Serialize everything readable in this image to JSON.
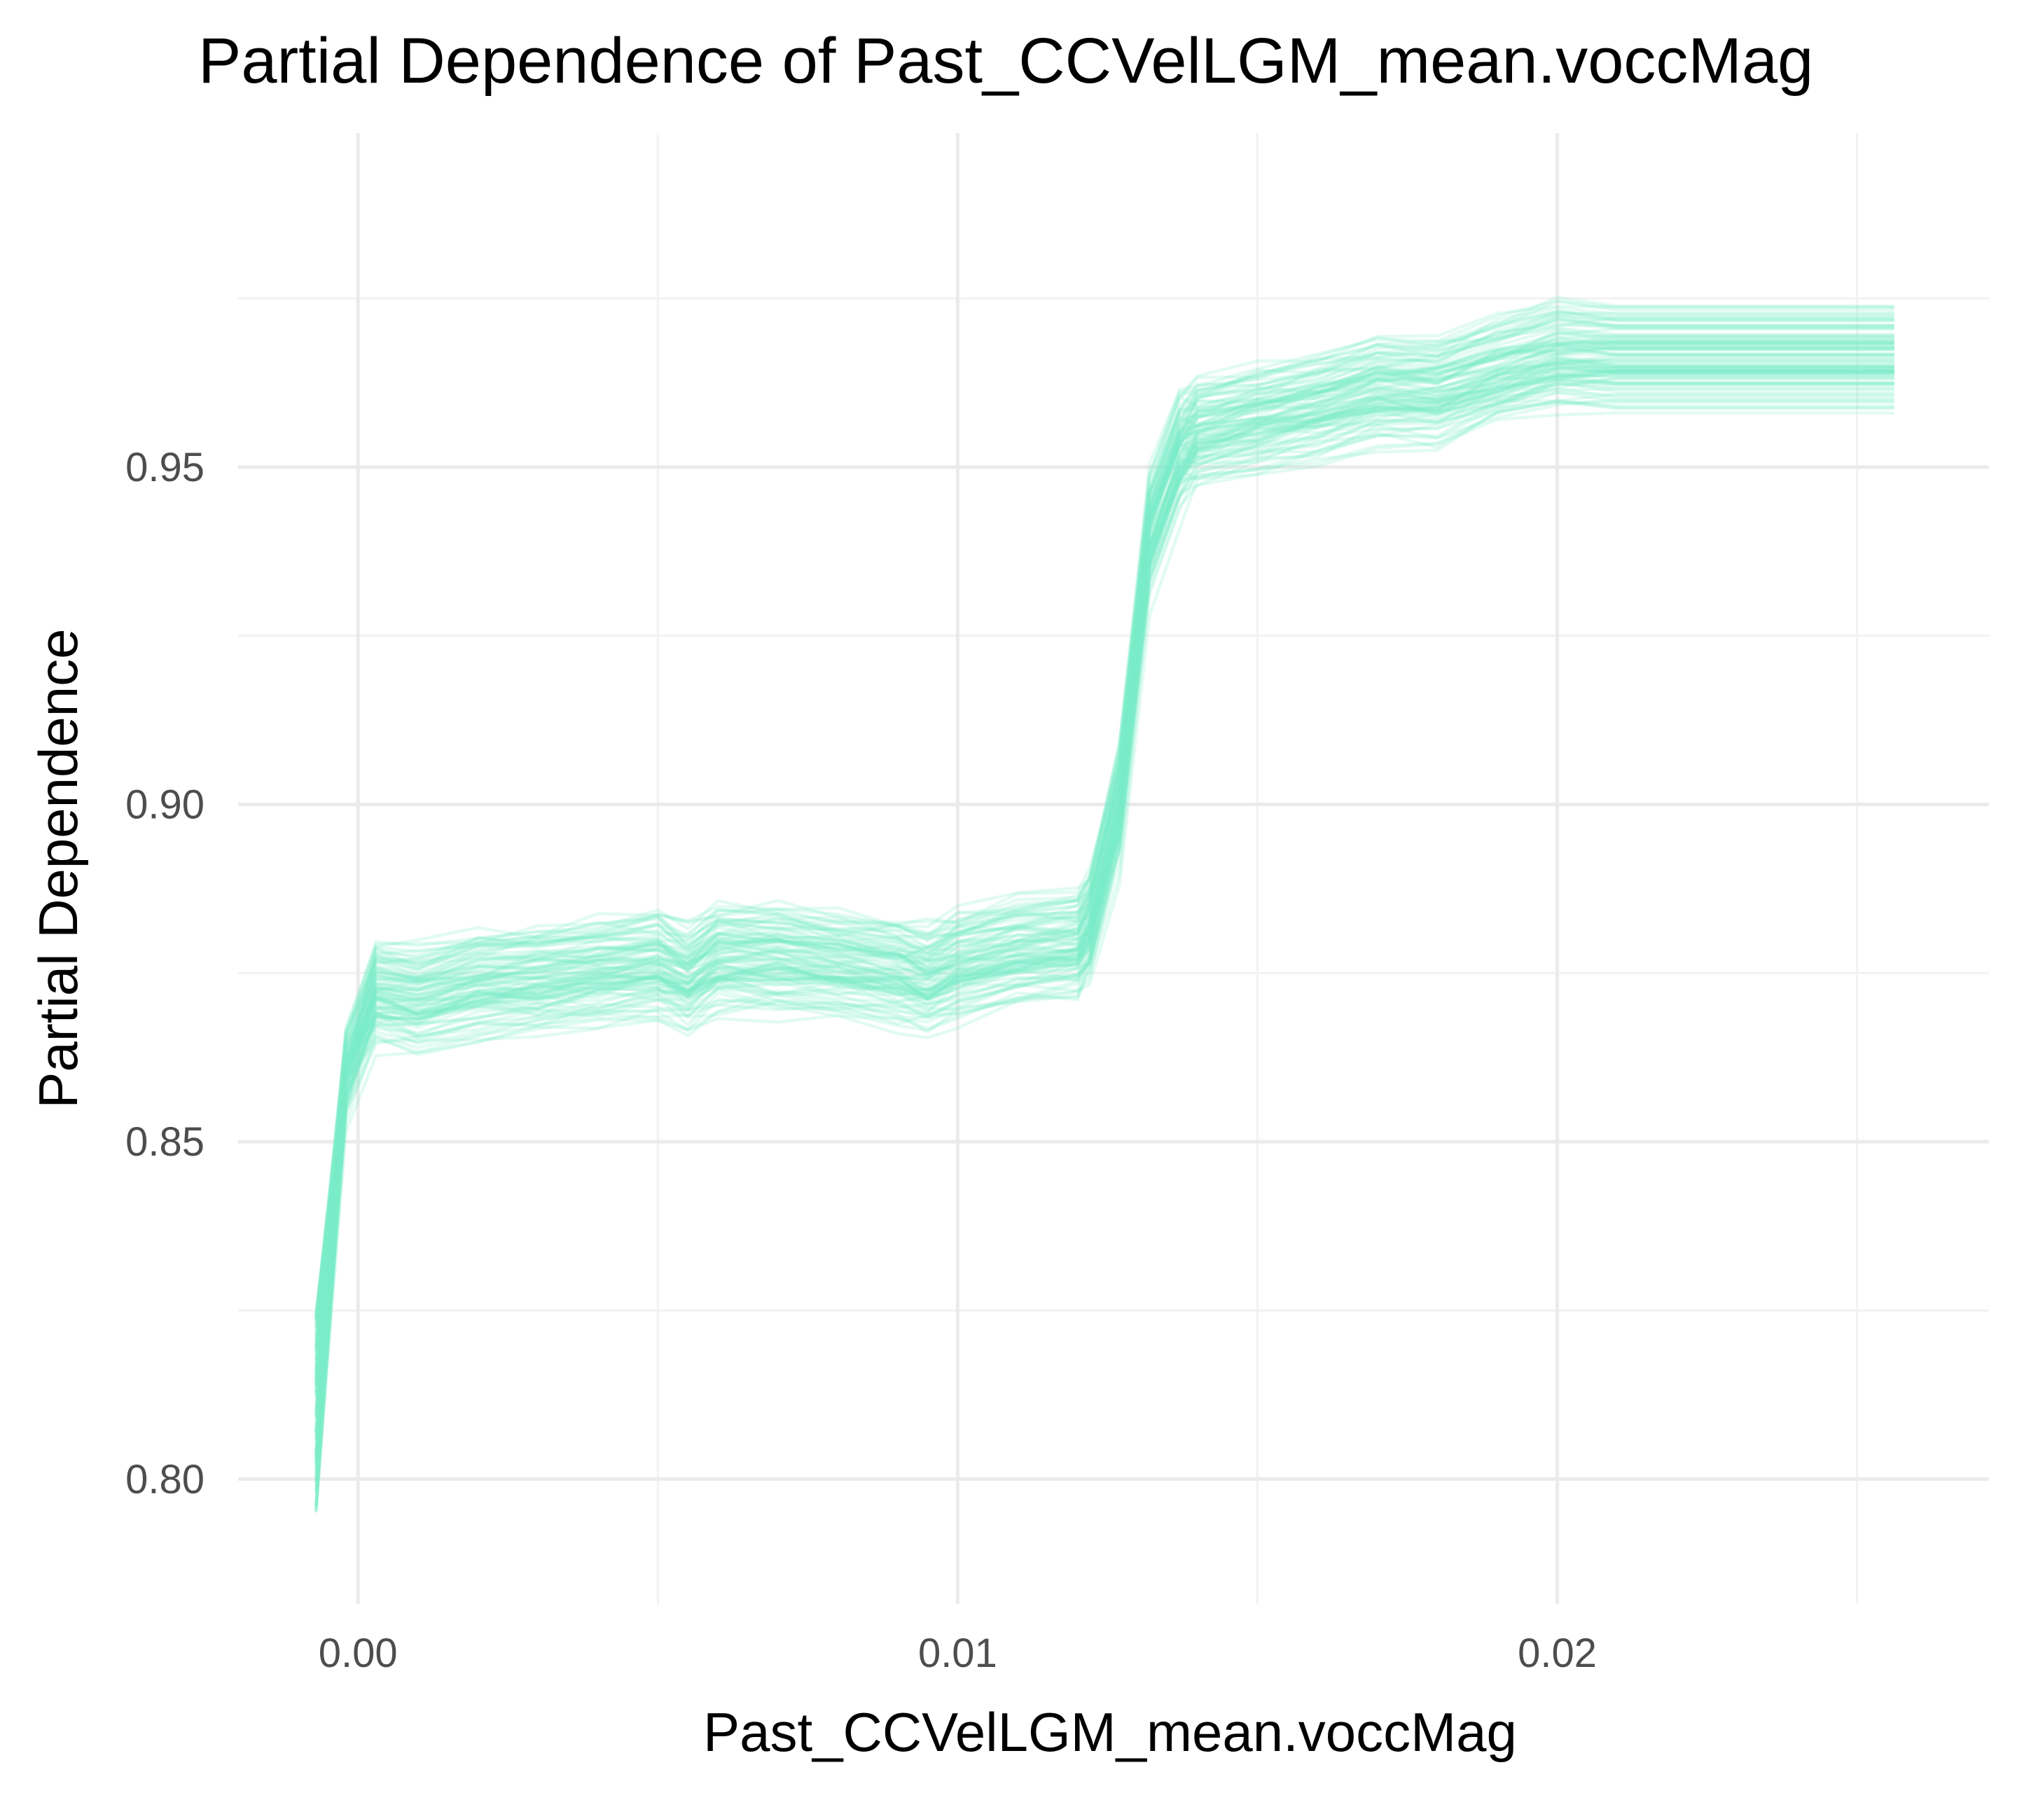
{
  "chart_data": {
    "type": "line",
    "title": "Partial Dependence of Past_CCVelLGM_mean.voccMag",
    "xlabel": "Past_CCVelLGM_mean.voccMag",
    "ylabel": "Partial Dependence",
    "xlim": [
      -0.002,
      0.0272
    ],
    "ylim": [
      0.7815,
      0.9995
    ],
    "x_major_ticks": [
      0.0,
      0.01,
      0.02
    ],
    "x_tick_labels": [
      "0.00",
      "0.01",
      "0.02"
    ],
    "x_minor_ticks": [
      0.005,
      0.015,
      0.025
    ],
    "y_major_ticks": [
      0.8,
      0.85,
      0.9,
      0.95
    ],
    "y_tick_labels": [
      "0.80",
      "0.85",
      "0.90",
      "0.95"
    ],
    "y_minor_ticks": [
      0.825,
      0.875,
      0.925,
      0.975
    ],
    "grid": true,
    "legend": "none",
    "line_color": "#7aeec7",
    "line_opacity": 0.22,
    "n_curves": 100,
    "x": [
      -0.0007,
      -0.0002,
      0.0003,
      0.001,
      0.002,
      0.003,
      0.004,
      0.005,
      0.0055,
      0.006,
      0.007,
      0.008,
      0.009,
      0.0095,
      0.01,
      0.011,
      0.012,
      0.0122,
      0.0127,
      0.0132,
      0.0137,
      0.014,
      0.015,
      0.016,
      0.017,
      0.018,
      0.019,
      0.02,
      0.021,
      0.022,
      0.023,
      0.024,
      0.0256
    ],
    "mean_curve": [
      0.81,
      0.86,
      0.872,
      0.871,
      0.873,
      0.874,
      0.875,
      0.876,
      0.874,
      0.877,
      0.877,
      0.876,
      0.875,
      0.874,
      0.876,
      0.878,
      0.879,
      0.882,
      0.9,
      0.94,
      0.952,
      0.955,
      0.957,
      0.959,
      0.961,
      0.961,
      0.964,
      0.966,
      0.966,
      0.966,
      0.966,
      0.966,
      0.966
    ],
    "offset_range": [
      -0.008,
      0.008
    ],
    "ice_curves_note": ""
  }
}
